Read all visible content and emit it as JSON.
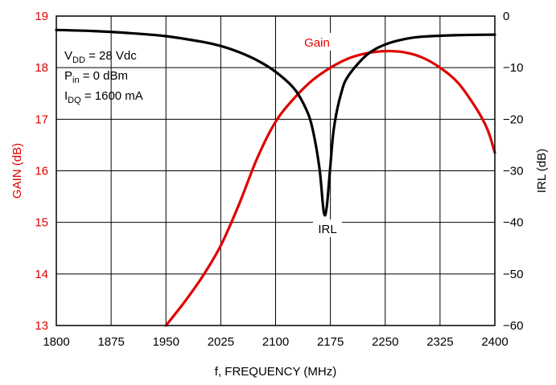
{
  "chart_data": {
    "type": "line",
    "xlabel": "f, FREQUENCY (MHz)",
    "ylabel_left": "GAIN (dB)",
    "ylabel_right": "IRL (dB)",
    "xlim": [
      1800,
      2400
    ],
    "ylim_left": [
      13,
      19
    ],
    "ylim_right": [
      -60,
      0
    ],
    "x_ticks": [
      "1800",
      "1875",
      "1950",
      "2025",
      "2100",
      "2175",
      "2250",
      "2325",
      "2400"
    ],
    "y_left_ticks": [
      "13",
      "14",
      "15",
      "16",
      "17",
      "18",
      "19"
    ],
    "y_right_ticks": [
      "0",
      "−10",
      "−20",
      "−30",
      "−40",
      "−50",
      "−60"
    ],
    "grid": true,
    "colors": {
      "gain": "#e00000",
      "irl": "#000000",
      "left_axis": "#e00000",
      "right_axis": "#000000"
    },
    "series": [
      {
        "name": "Gain",
        "axis": "left",
        "x": [
          1950,
          1975,
          2000,
          2025,
          2050,
          2075,
          2100,
          2125,
          2150,
          2175,
          2200,
          2225,
          2250,
          2275,
          2300,
          2325,
          2350,
          2375,
          2390,
          2400
        ],
        "y": [
          13.0,
          13.45,
          13.95,
          14.55,
          15.35,
          16.25,
          16.95,
          17.4,
          17.75,
          18.0,
          18.18,
          18.28,
          18.32,
          18.3,
          18.2,
          18.0,
          17.7,
          17.2,
          16.8,
          16.35
        ]
      },
      {
        "name": "IRL",
        "axis": "right",
        "x": [
          1800,
          1850,
          1900,
          1950,
          2000,
          2025,
          2050,
          2075,
          2100,
          2125,
          2140,
          2150,
          2160,
          2166,
          2170,
          2175,
          2180,
          2190,
          2200,
          2225,
          2250,
          2275,
          2300,
          2350,
          2400
        ],
        "y": [
          -2.7,
          -2.9,
          -3.3,
          -3.9,
          -5.0,
          -5.8,
          -7.0,
          -8.6,
          -10.8,
          -14.0,
          -17.5,
          -21.5,
          -29.5,
          -38.0,
          -37.0,
          -29.0,
          -21.5,
          -14.8,
          -11.5,
          -7.5,
          -5.5,
          -4.5,
          -4.0,
          -3.7,
          -3.6
        ]
      }
    ],
    "annotations": {
      "vdd_prefix": "V",
      "vdd_sub": "DD",
      "vdd_value": " = 28 Vdc",
      "pin_prefix": "P",
      "pin_sub": "in",
      "pin_value": " = 0 dBm",
      "idq_prefix": "I",
      "idq_sub": "DQ",
      "idq_value": " = 1600 mA",
      "gain_label": "Gain",
      "irl_label": "IRL"
    }
  }
}
